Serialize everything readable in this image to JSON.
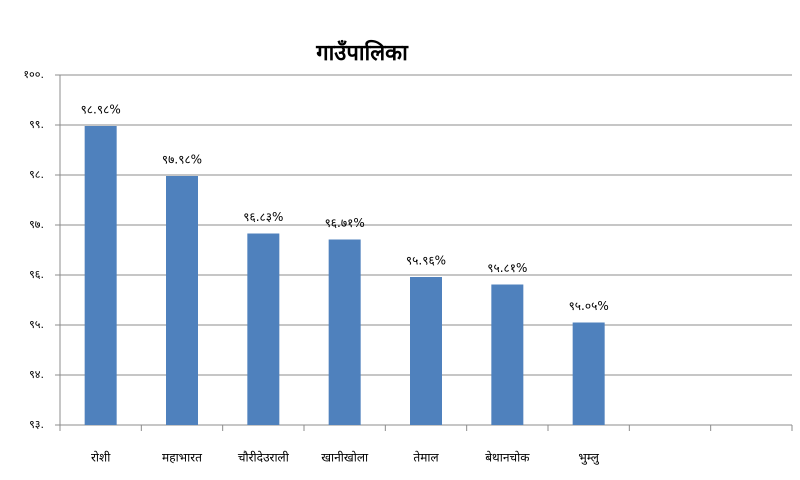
{
  "chart_data": {
    "type": "bar",
    "title": "गाउँपालिका",
    "categories": [
      "रोशी",
      "महाभारत",
      "चौरीदेउराली",
      "खानीखोला",
      "तेमाल",
      "बेथानचोक",
      "भुम्लु",
      null,
      null
    ],
    "values": [
      98.98,
      97.98,
      96.83,
      96.71,
      95.96,
      95.81,
      95.05,
      null,
      null
    ],
    "value_labels": [
      "९८.९८%",
      "९७.९८%",
      "९६.८३%",
      "९६.७१%",
      "९५.९६%",
      "९५.८१%",
      "९५.०५%",
      null,
      null
    ],
    "color": "#4f81bd",
    "ylim": [
      93,
      100
    ],
    "yticks": [
      {
        "value": 93,
        "label": "९३."
      },
      {
        "value": 94,
        "label": "९४."
      },
      {
        "value": 95,
        "label": "९५."
      },
      {
        "value": 96,
        "label": "९६."
      },
      {
        "value": 97,
        "label": "९७."
      },
      {
        "value": 98,
        "label": "९८."
      },
      {
        "value": 99,
        "label": "९९."
      },
      {
        "value": 100,
        "label": "१००."
      }
    ],
    "grid": true
  }
}
